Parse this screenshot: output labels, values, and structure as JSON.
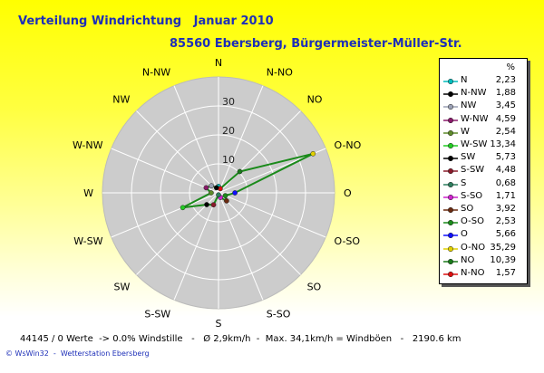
{
  "title": {
    "main": "Verteilung Windrichtung   Januar 2010",
    "location": "85560 Ebersberg, Bürgermeister-Müller-Str."
  },
  "chart_data": {
    "type": "radar",
    "rlim": [
      0,
      40
    ],
    "ring_labels": [
      "10",
      "20",
      "30"
    ],
    "directions": [
      "N",
      "N-NO",
      "NO",
      "O-NO",
      "O",
      "O-SO",
      "SO",
      "S-SO",
      "S",
      "S-SW",
      "SW",
      "W-SW",
      "W",
      "W-NW",
      "NW",
      "N-NW"
    ],
    "values": [
      2.23,
      1.57,
      10.39,
      35.29,
      5.66,
      2.53,
      3.92,
      1.71,
      0.68,
      4.48,
      5.73,
      13.34,
      2.54,
      4.59,
      3.45,
      1.88
    ],
    "series_color": "#1a8a1a",
    "plot_background": "#cccccc",
    "legend": {
      "header": "%",
      "entries": [
        {
          "label": "N",
          "value": "2,23",
          "color": "#00bcbc"
        },
        {
          "label": "N-NW",
          "value": "1,88",
          "color": "#000000"
        },
        {
          "label": "NW",
          "value": "3,45",
          "color": "#9aa0b4"
        },
        {
          "label": "W-NW",
          "value": "4,59",
          "color": "#8a1a6a"
        },
        {
          "label": "W",
          "value": "2,54",
          "color": "#5e8a2a"
        },
        {
          "label": "W-SW",
          "value": "13,34",
          "color": "#22cc22"
        },
        {
          "label": "SW",
          "value": "5,73",
          "color": "#000000"
        },
        {
          "label": "S-SW",
          "value": "4,48",
          "color": "#8a1a2a"
        },
        {
          "label": "S",
          "value": "0,68",
          "color": "#2e7d5e"
        },
        {
          "label": "S-SO",
          "value": "1,71",
          "color": "#cc22cc"
        },
        {
          "label": "SO",
          "value": "3,92",
          "color": "#6a2a10"
        },
        {
          "label": "O-SO",
          "value": "2,53",
          "color": "#1a8a1a"
        },
        {
          "label": "O",
          "value": "5,66",
          "color": "#1010ff"
        },
        {
          "label": "O-NO",
          "value": "35,29",
          "color": "#e0d000"
        },
        {
          "label": "NO",
          "value": "10,39",
          "color": "#1a7a1a"
        },
        {
          "label": "N-NO",
          "value": "1,57",
          "color": "#dd1010"
        }
      ]
    }
  },
  "stats": "44145 / 0 Werte  -> 0.0% Windstille   -   Ø 2,9km/h  -  Max. 34,1km/h = Windböen   -   2190.6 km",
  "footer": "© WsWin32  -  Wetterstation Ebersberg"
}
